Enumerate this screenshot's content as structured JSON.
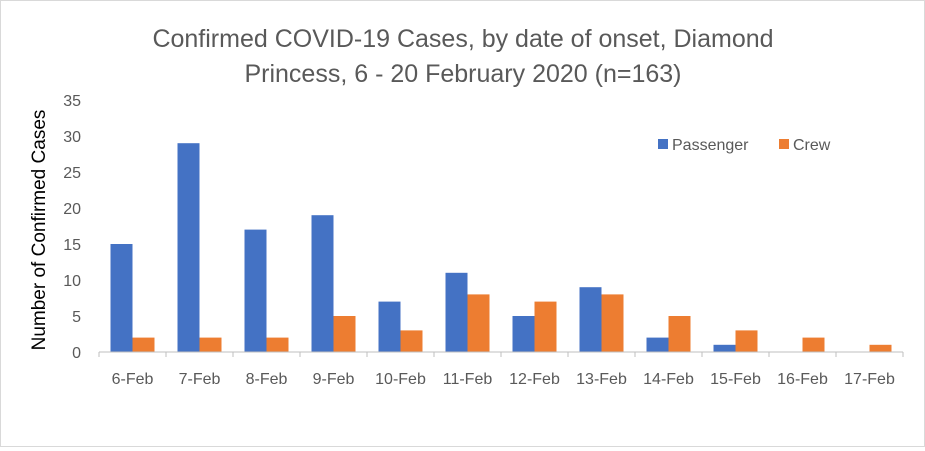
{
  "chart_data": {
    "type": "bar",
    "title_lines": [
      "Confirmed COVID-19 Cases, by date of onset, Diamond",
      "Princess, 6 - 20 February 2020 (n=163)"
    ],
    "xlabel": "",
    "ylabel": "Number of Confirmed Cases",
    "ylim": [
      0,
      35
    ],
    "yticks": [
      0,
      5,
      10,
      15,
      20,
      25,
      30,
      35
    ],
    "grid": false,
    "legend_position": "top-right",
    "categories": [
      "6-Feb",
      "7-Feb",
      "8-Feb",
      "9-Feb",
      "10-Feb",
      "11-Feb",
      "12-Feb",
      "13-Feb",
      "14-Feb",
      "15-Feb",
      "16-Feb",
      "17-Feb"
    ],
    "series": [
      {
        "name": "Passenger",
        "color": "#4472c4",
        "values": [
          15,
          29,
          17,
          19,
          7,
          11,
          5,
          9,
          2,
          1,
          0,
          0
        ]
      },
      {
        "name": "Crew",
        "color": "#ed7d31",
        "values": [
          2,
          2,
          2,
          5,
          3,
          8,
          7,
          8,
          5,
          3,
          2,
          1
        ]
      }
    ]
  }
}
